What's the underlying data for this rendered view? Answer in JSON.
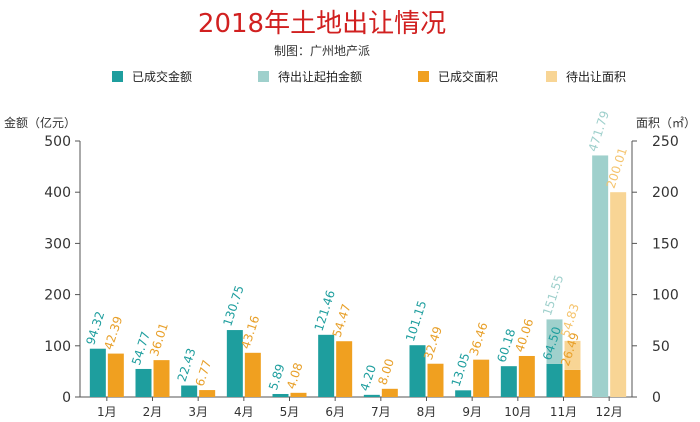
{
  "chart_data": {
    "type": "bar",
    "title": "2018年土地出让情况",
    "subtitle": "制图：广州地产派",
    "ylabel_left": "金额（亿元）",
    "ylabel_right": "面积（㎡）",
    "ylim_left": [
      0,
      500
    ],
    "yticks_left": [
      0,
      100,
      200,
      300,
      400,
      500
    ],
    "ylim_right": [
      0,
      250
    ],
    "yticks_right": [
      0,
      50,
      100,
      150,
      200,
      250
    ],
    "grid": false,
    "legend_position": "top",
    "categories": [
      "1月",
      "2月",
      "3月",
      "4月",
      "5月",
      "6月",
      "7月",
      "8月",
      "9月",
      "10月",
      "11月",
      "12月"
    ],
    "series": [
      {
        "name": "已成交金额",
        "axis": "left",
        "color": "#1e9e9e",
        "label_color": "#1e9e9e",
        "values": [
          94.32,
          54.77,
          22.43,
          130.75,
          5.89,
          121.46,
          4.2,
          101.15,
          13.05,
          60.18,
          64.5,
          null
        ],
        "labels": [
          "94.32",
          "54.77",
          "22.43",
          "130.75",
          "5.89",
          "121.46",
          "4.20",
          "101.15",
          "13.05",
          "60.18",
          "64.50",
          ""
        ]
      },
      {
        "name": "待出让起拍金额",
        "axis": "left",
        "color": "#9fd0cc",
        "label_color": "#9fd0cc",
        "stack_on": "已成交金额",
        "values": [
          null,
          null,
          null,
          null,
          null,
          null,
          null,
          null,
          null,
          null,
          151.55,
          471.79
        ],
        "labels": [
          "",
          "",
          "",
          "",
          "",
          "",
          "",
          "",
          "",
          "",
          "151.55",
          "471.79"
        ]
      },
      {
        "name": "已成交面积",
        "axis": "right",
        "color": "#f0a020",
        "label_color": "#e8a02a",
        "values": [
          42.39,
          36.01,
          6.77,
          43.16,
          4.08,
          54.47,
          8.0,
          32.49,
          36.46,
          40.06,
          26.49,
          null
        ],
        "labels": [
          "42.39",
          "36.01",
          "6.77",
          "43.16",
          "4.08",
          "54.47",
          "8.00",
          "32.49",
          "36.46",
          "40.06",
          "26.49",
          ""
        ]
      },
      {
        "name": "待出让面积",
        "axis": "right",
        "color": "#f8d595",
        "label_color": "#f5c46e",
        "stack_on": "已成交面积",
        "values": [
          null,
          null,
          null,
          null,
          null,
          null,
          null,
          null,
          null,
          null,
          54.83,
          200.01
        ],
        "labels": [
          "",
          "",
          "",
          "",
          "",
          "",
          "",
          "",
          "",
          "",
          "54.83",
          "200.01"
        ]
      }
    ]
  },
  "colors": {
    "title": "#d12020",
    "subtitle": "#333333",
    "axis": "#444444",
    "tick_text": "#333333"
  }
}
